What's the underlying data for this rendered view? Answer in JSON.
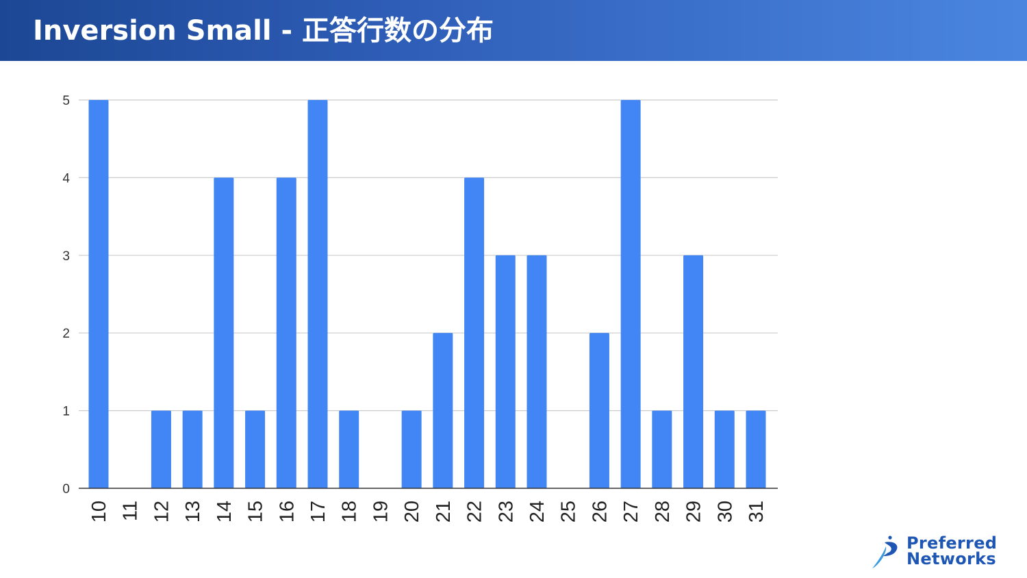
{
  "slide": {
    "title": "Inversion Small - 正答行数の分布"
  },
  "logo": {
    "line1": "Preferred",
    "line2": "Networks",
    "name": "preferred-networks-logo"
  },
  "colors": {
    "bar": "#4285f4",
    "grid": "#cccccc",
    "axis": "#333333",
    "logo_blue": "#1e56b4"
  },
  "chart_data": {
    "type": "bar",
    "categories": [
      "10",
      "11",
      "12",
      "13",
      "14",
      "15",
      "16",
      "17",
      "18",
      "19",
      "20",
      "21",
      "22",
      "23",
      "24",
      "25",
      "26",
      "27",
      "28",
      "29",
      "30",
      "31"
    ],
    "values": [
      5,
      0,
      1,
      1,
      4,
      1,
      4,
      5,
      1,
      0,
      1,
      2,
      4,
      3,
      3,
      0,
      2,
      5,
      1,
      3,
      1,
      1
    ],
    "title": "",
    "xlabel": "",
    "ylabel": "",
    "ylim": [
      0,
      5
    ],
    "yticks": [
      "0",
      "1",
      "2",
      "3",
      "4",
      "5"
    ],
    "grid": true,
    "legend": "none",
    "x_tick_rotation": "vertical"
  }
}
